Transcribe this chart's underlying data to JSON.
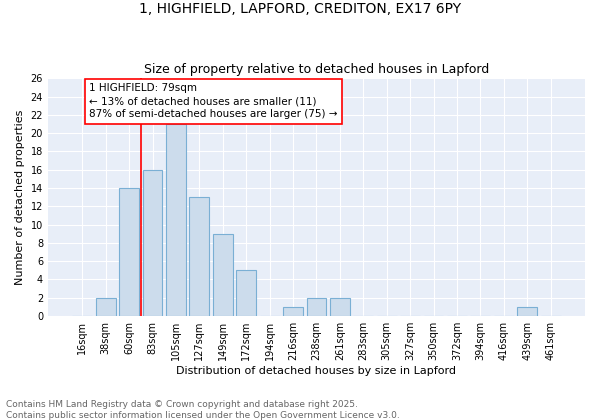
{
  "title": "1, HIGHFIELD, LAPFORD, CREDITON, EX17 6PY",
  "subtitle": "Size of property relative to detached houses in Lapford",
  "xlabel": "Distribution of detached houses by size in Lapford",
  "ylabel": "Number of detached properties",
  "bar_color": "#ccdcec",
  "bar_edge_color": "#7aafd4",
  "background_color": "#e8eef8",
  "grid_color": "#ffffff",
  "categories": [
    "16sqm",
    "38sqm",
    "60sqm",
    "83sqm",
    "105sqm",
    "127sqm",
    "149sqm",
    "172sqm",
    "194sqm",
    "216sqm",
    "238sqm",
    "261sqm",
    "283sqm",
    "305sqm",
    "327sqm",
    "350sqm",
    "372sqm",
    "394sqm",
    "416sqm",
    "439sqm",
    "461sqm"
  ],
  "values": [
    0,
    2,
    14,
    16,
    21,
    13,
    9,
    5,
    0,
    1,
    2,
    2,
    0,
    0,
    0,
    0,
    0,
    0,
    0,
    1,
    0
  ],
  "ylim": [
    0,
    26
  ],
  "yticks": [
    0,
    2,
    4,
    6,
    8,
    10,
    12,
    14,
    16,
    18,
    20,
    22,
    24,
    26
  ],
  "vline_x": 2.5,
  "annotation_text": "1 HIGHFIELD: 79sqm\n← 13% of detached houses are smaller (11)\n87% of semi-detached houses are larger (75) →",
  "footer_line1": "Contains HM Land Registry data © Crown copyright and database right 2025.",
  "footer_line2": "Contains public sector information licensed under the Open Government Licence v3.0.",
  "title_fontsize": 10,
  "subtitle_fontsize": 9,
  "axis_label_fontsize": 8,
  "tick_fontsize": 7,
  "annotation_fontsize": 7.5,
  "footer_fontsize": 6.5
}
